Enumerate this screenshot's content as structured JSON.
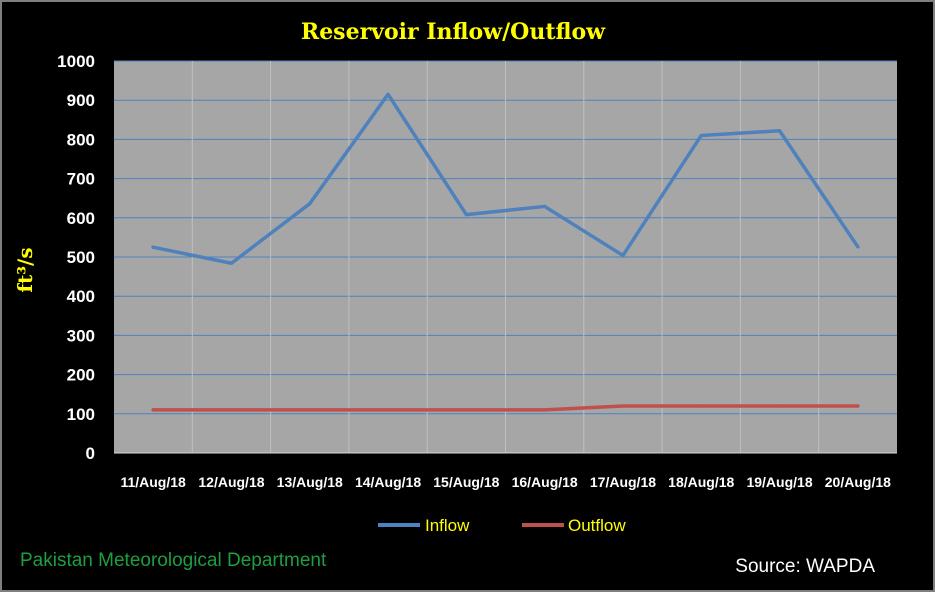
{
  "chart_data": {
    "type": "line",
    "title": "Reservoir Inflow/Outflow",
    "ylabel": "ft³/s",
    "xlabel": "",
    "categories": [
      "11/Aug/18",
      "12/Aug/18",
      "13/Aug/18",
      "14/Aug/18",
      "15/Aug/18",
      "16/Aug/18",
      "17/Aug/18",
      "18/Aug/18",
      "19/Aug/18",
      "20/Aug/18"
    ],
    "ylim": [
      0,
      1000
    ],
    "yticks": [
      0,
      100,
      200,
      300,
      400,
      500,
      600,
      700,
      800,
      900,
      1000
    ],
    "grid": true,
    "plot_background": "#a6a6a6",
    "legend_position": "bottom",
    "series": [
      {
        "name": "Inflow",
        "color": "#4f81bd",
        "values": [
          525,
          484,
          636,
          915,
          608,
          629,
          504,
          810,
          822,
          526
        ]
      },
      {
        "name": "Outflow",
        "color": "#c0504d",
        "values": [
          110,
          110,
          110,
          110,
          110,
          110,
          120,
          120,
          120,
          120
        ]
      }
    ]
  },
  "footer": {
    "organization": "Pakistan Meteorological Department",
    "source": "Source: WAPDA"
  },
  "colors": {
    "background": "#000000",
    "title": "#ffff00",
    "gridline": "#4f81bd",
    "organization": "#1e9f3f"
  }
}
